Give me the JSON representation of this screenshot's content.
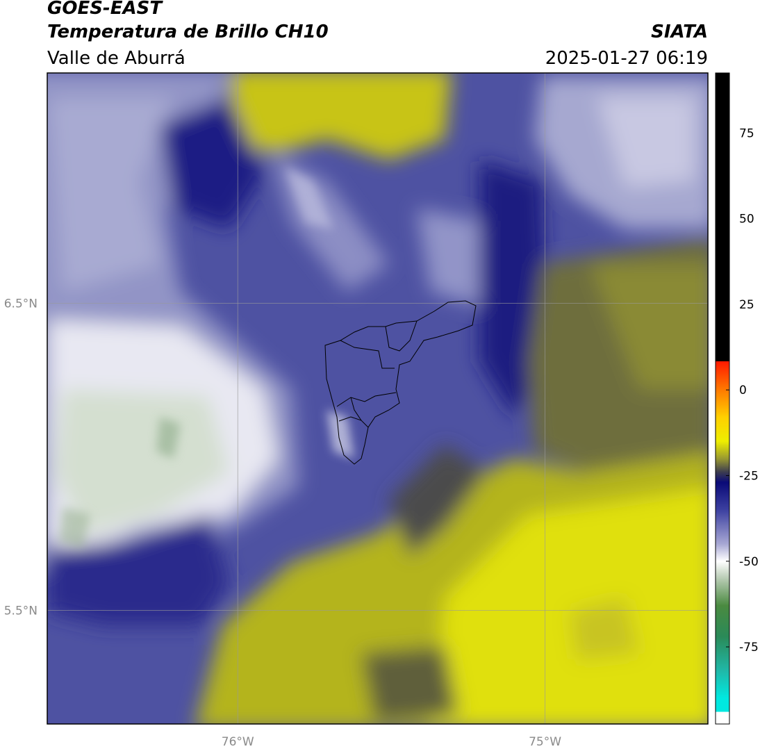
{
  "header": {
    "title": "GOES-EAST",
    "subtitle": "Temperatura de Brillo CH10",
    "region": "Valle de Aburrá",
    "source": "SIATA",
    "datetime": "2025-01-27 06:19"
  },
  "map": {
    "lonlim": [
      -76.62,
      -74.47
    ],
    "latlim": [
      5.13,
      7.25
    ],
    "lon_ticks": [
      {
        "value": -76,
        "label": "76°W"
      },
      {
        "value": -75,
        "label": "75°W"
      }
    ],
    "lat_ticks": [
      {
        "value": 6.5,
        "label": "6.5°N"
      },
      {
        "value": 5.5,
        "label": "5.5°N"
      }
    ]
  },
  "colorbar": {
    "lim": [
      -97.5,
      92.5
    ],
    "ticks": [
      75,
      50,
      25,
      0,
      -25,
      -50,
      -75
    ],
    "colormap": [
      {
        "value": 92.5,
        "color": "#000000"
      },
      {
        "value": 8.4,
        "color": "#000000"
      },
      {
        "value": 8.3,
        "color": "#ff1a00"
      },
      {
        "value": 0,
        "color": "#ff7a00"
      },
      {
        "value": -8,
        "color": "#ffd000"
      },
      {
        "value": -15,
        "color": "#eeee00"
      },
      {
        "value": -20,
        "color": "#9a9a30"
      },
      {
        "value": -24,
        "color": "#3c3c50"
      },
      {
        "value": -27,
        "color": "#0a0a78"
      },
      {
        "value": -35,
        "color": "#3c40a0"
      },
      {
        "value": -45,
        "color": "#a8a8d4"
      },
      {
        "value": -50,
        "color": "#ffffff"
      },
      {
        "value": -55,
        "color": "#b8ccb4"
      },
      {
        "value": -63,
        "color": "#4a8a40"
      },
      {
        "value": -72,
        "color": "#2a8a58"
      },
      {
        "value": -82,
        "color": "#20b8a8"
      },
      {
        "value": -90,
        "color": "#00e8e0"
      },
      {
        "value": -93.9,
        "color": "#00e8e0"
      },
      {
        "value": -94,
        "color": "#ffffff"
      },
      {
        "value": -97.5,
        "color": "#ffffff"
      }
    ]
  }
}
